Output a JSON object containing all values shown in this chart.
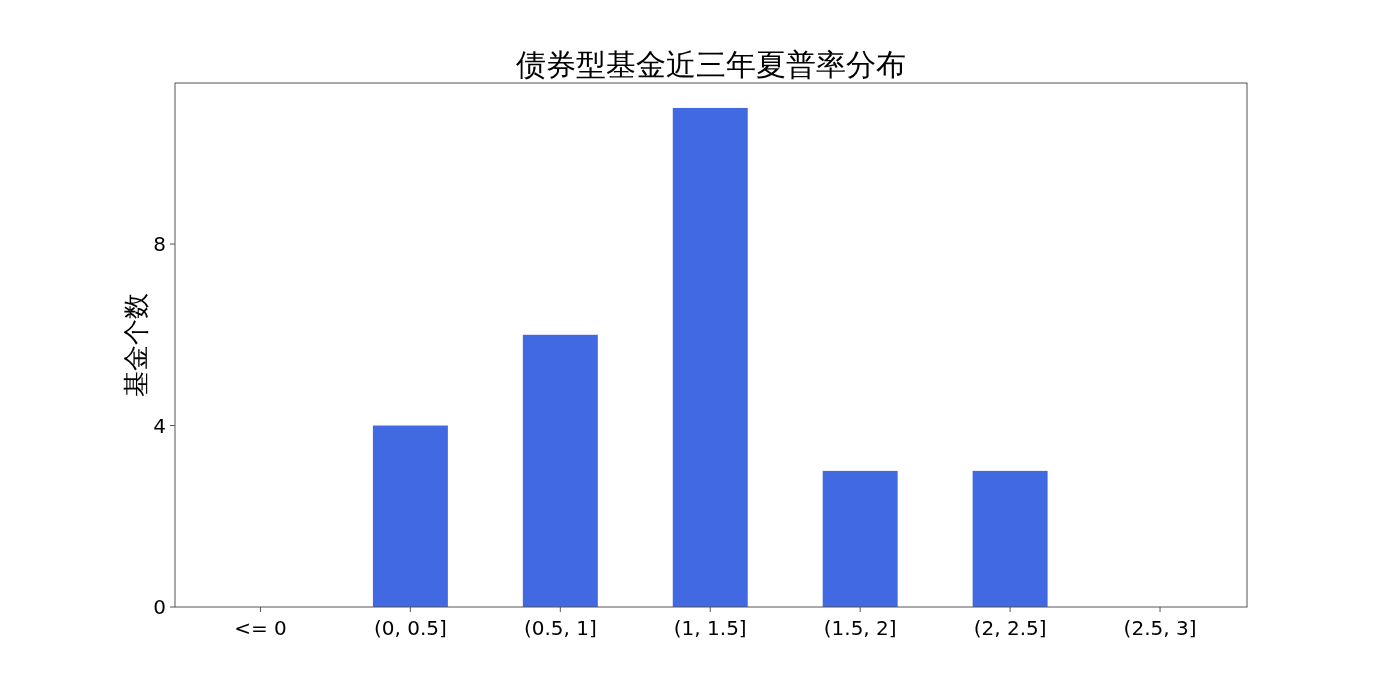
{
  "chart_data": {
    "type": "bar",
    "title": "债券型基金近三年夏普率分布",
    "ylabel": "基金个数",
    "categories": [
      "<= 0",
      "(0, 0.5]",
      "(0.5, 1]",
      "(1, 1.5]",
      "(1.5, 2]",
      "(2, 2.5]",
      "(2.5, 3]"
    ],
    "values": [
      0,
      4,
      6,
      11,
      3,
      3,
      0
    ],
    "color": "#4169e1",
    "ylim": [
      0,
      11.55
    ],
    "yticks": [
      0,
      4,
      8
    ],
    "grid": false
  }
}
